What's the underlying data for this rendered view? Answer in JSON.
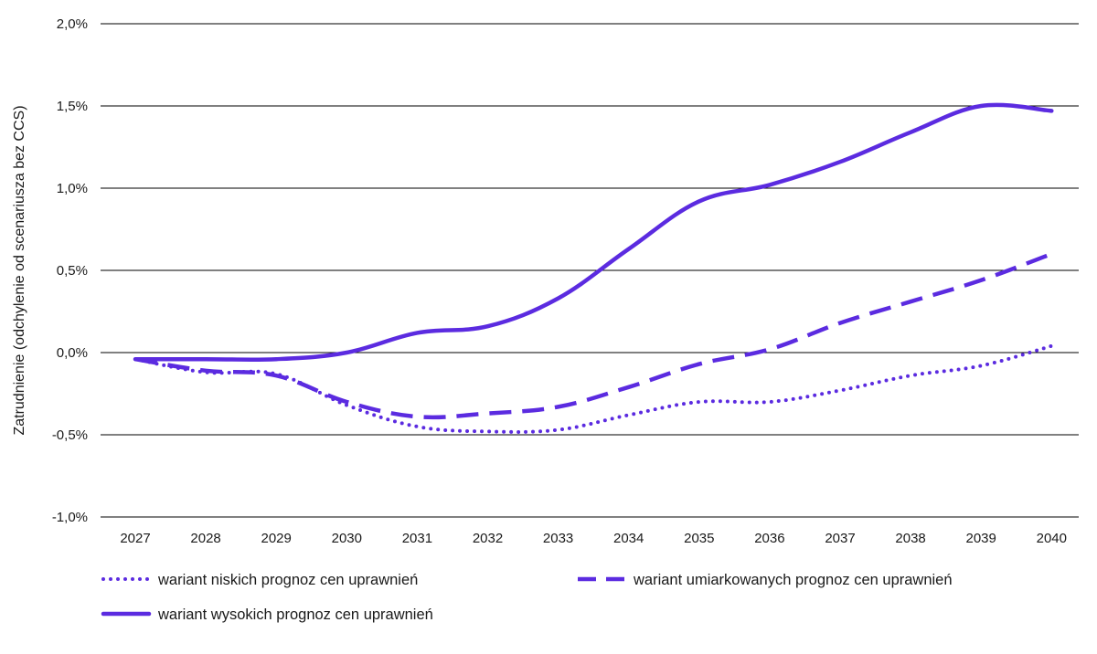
{
  "chart_data": {
    "type": "line",
    "title": "",
    "xlabel": "",
    "ylabel": "Zatrudnienie (odchylenie od scenariusza bez CCS)",
    "ylim": [
      -1.0,
      2.0
    ],
    "yticks": [
      -1.0,
      -0.5,
      0.0,
      0.5,
      1.0,
      1.5,
      2.0
    ],
    "ytick_labels": [
      "-1,0%",
      "-0,5%",
      "0,0%",
      "0,5%",
      "1,0%",
      "1,5%",
      "2,0%"
    ],
    "grid": "horizontal",
    "legend_placement": "bottom",
    "categories": [
      "2027",
      "2028",
      "2029",
      "2030",
      "2031",
      "2032",
      "2033",
      "2034",
      "2035",
      "2036",
      "2037",
      "2038",
      "2039",
      "2040"
    ],
    "series": [
      {
        "name": "wariant niskich prognoz cen uprawnień",
        "style": "dotted",
        "color": "#5b2be0",
        "values": [
          -0.04,
          -0.12,
          -0.13,
          -0.32,
          -0.45,
          -0.48,
          -0.47,
          -0.38,
          -0.3,
          -0.3,
          -0.23,
          -0.14,
          -0.08,
          0.04
        ]
      },
      {
        "name": "wariant umiarkowanych prognoz cen uprawnień",
        "style": "dashed",
        "color": "#5b2be0",
        "values": [
          -0.04,
          -0.11,
          -0.14,
          -0.3,
          -0.39,
          -0.37,
          -0.33,
          -0.21,
          -0.07,
          0.02,
          0.18,
          0.31,
          0.44,
          0.6
        ]
      },
      {
        "name": "wariant wysokich prognoz cen uprawnień",
        "style": "solid",
        "color": "#5b2be0",
        "values": [
          -0.04,
          -0.04,
          -0.04,
          0.0,
          0.12,
          0.16,
          0.33,
          0.63,
          0.92,
          1.02,
          1.16,
          1.34,
          1.5,
          1.47
        ]
      }
    ]
  }
}
